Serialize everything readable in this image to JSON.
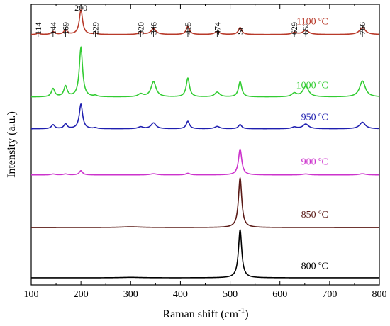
{
  "chart_data": {
    "type": "line",
    "xlabel": "Raman shift (cm",
    "xlabel_sup": "-1",
    "xlabel_end": ")",
    "ylabel": "Intensity (a.u.)",
    "xlim": [
      100,
      800
    ],
    "x_ticks": [
      "100",
      "200",
      "300",
      "400",
      "500",
      "600",
      "700",
      "800"
    ],
    "y_ticks_shown": false,
    "grid": false,
    "peak_labels": [
      {
        "text": "114",
        "x": 114
      },
      {
        "text": "144",
        "x": 144
      },
      {
        "text": "169",
        "x": 169
      },
      {
        "text": "200",
        "x": 200
      },
      {
        "text": "229",
        "x": 229
      },
      {
        "text": "320",
        "x": 320
      },
      {
        "text": "346",
        "x": 346
      },
      {
        "text": "415",
        "x": 415
      },
      {
        "text": "474",
        "x": 474
      },
      {
        "text": "Si",
        "x": 520
      },
      {
        "text": "629",
        "x": 629
      },
      {
        "text": "652",
        "x": 652
      },
      {
        "text": "766",
        "x": 766
      }
    ],
    "series": [
      {
        "name": "800 ºC",
        "color": "#000000",
        "baseline": 0.0,
        "peaks": [
          {
            "x": 300,
            "h": 0.02,
            "w": 25
          },
          {
            "x": 520,
            "h": 2.05,
            "w": 4
          }
        ]
      },
      {
        "name": "850 ºC",
        "color": "#5a1a16",
        "baseline": 2.15,
        "peaks": [
          {
            "x": 300,
            "h": 0.03,
            "w": 25
          },
          {
            "x": 520,
            "h": 2.12,
            "w": 4
          }
        ]
      },
      {
        "name": "900 ºC",
        "color": "#cc33cc",
        "baseline": 4.4,
        "peaks": [
          {
            "x": 144,
            "h": 0.04,
            "w": 5
          },
          {
            "x": 169,
            "h": 0.04,
            "w": 5
          },
          {
            "x": 200,
            "h": 0.18,
            "w": 4
          },
          {
            "x": 346,
            "h": 0.05,
            "w": 8
          },
          {
            "x": 415,
            "h": 0.07,
            "w": 5
          },
          {
            "x": 520,
            "h": 1.1,
            "w": 4
          },
          {
            "x": 652,
            "h": 0.04,
            "w": 8
          },
          {
            "x": 766,
            "h": 0.05,
            "w": 8
          }
        ]
      },
      {
        "name": "950 ºC",
        "color": "#1f1fb0",
        "baseline": 6.37,
        "peaks": [
          {
            "x": 144,
            "h": 0.17,
            "w": 4
          },
          {
            "x": 169,
            "h": 0.2,
            "w": 4
          },
          {
            "x": 200,
            "h": 1.05,
            "w": 4
          },
          {
            "x": 229,
            "h": 0.04,
            "w": 4
          },
          {
            "x": 320,
            "h": 0.08,
            "w": 6
          },
          {
            "x": 346,
            "h": 0.25,
            "w": 6
          },
          {
            "x": 415,
            "h": 0.32,
            "w": 4
          },
          {
            "x": 474,
            "h": 0.1,
            "w": 6
          },
          {
            "x": 520,
            "h": 0.18,
            "w": 4
          },
          {
            "x": 629,
            "h": 0.07,
            "w": 6
          },
          {
            "x": 652,
            "h": 0.2,
            "w": 7
          },
          {
            "x": 766,
            "h": 0.28,
            "w": 7
          }
        ]
      },
      {
        "name": "1000 ºC",
        "color": "#33cc33",
        "baseline": 7.73,
        "peaks": [
          {
            "x": 144,
            "h": 0.35,
            "w": 4
          },
          {
            "x": 169,
            "h": 0.45,
            "w": 4
          },
          {
            "x": 200,
            "h": 2.1,
            "w": 4
          },
          {
            "x": 229,
            "h": 0.05,
            "w": 4
          },
          {
            "x": 320,
            "h": 0.12,
            "w": 6
          },
          {
            "x": 346,
            "h": 0.65,
            "w": 6
          },
          {
            "x": 415,
            "h": 0.8,
            "w": 4
          },
          {
            "x": 474,
            "h": 0.2,
            "w": 6
          },
          {
            "x": 520,
            "h": 0.65,
            "w": 4
          },
          {
            "x": 629,
            "h": 0.15,
            "w": 6
          },
          {
            "x": 652,
            "h": 0.45,
            "w": 7
          },
          {
            "x": 766,
            "h": 0.68,
            "w": 7
          }
        ]
      },
      {
        "name": "1100 ºC",
        "color": "#b83a2a",
        "baseline": 10.4,
        "peaks": [
          {
            "x": 114,
            "h": 0.05,
            "w": 4
          },
          {
            "x": 144,
            "h": 0.12,
            "w": 4
          },
          {
            "x": 169,
            "h": 0.2,
            "w": 4
          },
          {
            "x": 200,
            "h": 1.05,
            "w": 4
          },
          {
            "x": 229,
            "h": 0.05,
            "w": 4
          },
          {
            "x": 320,
            "h": 0.07,
            "w": 6
          },
          {
            "x": 346,
            "h": 0.25,
            "w": 6
          },
          {
            "x": 415,
            "h": 0.35,
            "w": 4
          },
          {
            "x": 474,
            "h": 0.12,
            "w": 6
          },
          {
            "x": 520,
            "h": 0.3,
            "w": 4
          },
          {
            "x": 629,
            "h": 0.08,
            "w": 6
          },
          {
            "x": 652,
            "h": 0.18,
            "w": 7
          },
          {
            "x": 766,
            "h": 0.3,
            "w": 7
          }
        ]
      }
    ]
  }
}
